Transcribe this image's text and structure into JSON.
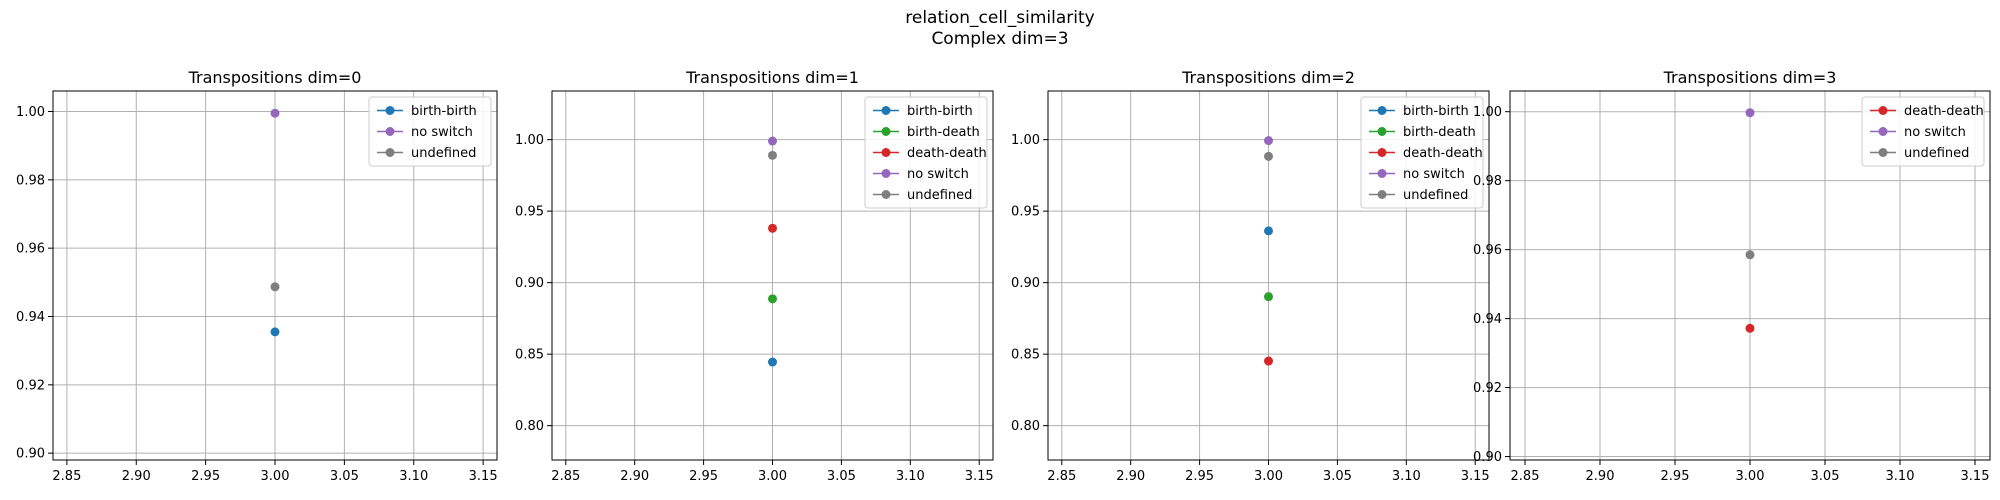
{
  "suptitle": [
    "relation_cell_similarity",
    "Complex dim=3"
  ],
  "colors": {
    "birth-birth": "#1f77b4",
    "birth-death": "#2ca02c",
    "death-death": "#d62728",
    "no switch": "#9467bd",
    "undefined": "#7f7f7f"
  },
  "chart_data": [
    {
      "type": "scatter",
      "title": "Transpositions dim=0",
      "xlim": [
        2.84,
        3.16
      ],
      "ylim": [
        0.898,
        1.006
      ],
      "xticks": [
        2.85,
        2.9,
        2.95,
        3.0,
        3.05,
        3.1,
        3.15
      ],
      "yticks": [
        0.9,
        0.92,
        0.94,
        0.96,
        0.98,
        1.0
      ],
      "grid": true,
      "legend_position": "top-right",
      "series": [
        {
          "name": "birth-birth",
          "x": [
            3.0
          ],
          "y": [
            0.9355
          ]
        },
        {
          "name": "no switch",
          "x": [
            3.0
          ],
          "y": [
            0.9995
          ]
        },
        {
          "name": "undefined",
          "x": [
            3.0
          ],
          "y": [
            0.9487
          ]
        }
      ]
    },
    {
      "type": "scatter",
      "title": "Transpositions dim=1",
      "xlim": [
        2.84,
        3.16
      ],
      "ylim": [
        0.776,
        1.034
      ],
      "xticks": [
        2.85,
        2.9,
        2.95,
        3.0,
        3.05,
        3.1,
        3.15
      ],
      "yticks": [
        0.8,
        0.85,
        0.9,
        0.95,
        1.0
      ],
      "grid": true,
      "legend_position": "top-right",
      "series": [
        {
          "name": "birth-birth",
          "x": [
            3.0
          ],
          "y": [
            0.8445
          ]
        },
        {
          "name": "birth-death",
          "x": [
            3.0
          ],
          "y": [
            0.8887
          ]
        },
        {
          "name": "death-death",
          "x": [
            3.0
          ],
          "y": [
            0.938
          ]
        },
        {
          "name": "no switch",
          "x": [
            3.0
          ],
          "y": [
            0.999
          ]
        },
        {
          "name": "undefined",
          "x": [
            3.0
          ],
          "y": [
            0.989
          ]
        }
      ]
    },
    {
      "type": "scatter",
      "title": "Transpositions dim=2",
      "xlim": [
        2.84,
        3.16
      ],
      "ylim": [
        0.776,
        1.034
      ],
      "xticks": [
        2.85,
        2.9,
        2.95,
        3.0,
        3.05,
        3.1,
        3.15
      ],
      "yticks": [
        0.8,
        0.85,
        0.9,
        0.95,
        1.0
      ],
      "grid": true,
      "legend_position": "top-right",
      "series": [
        {
          "name": "birth-birth",
          "x": [
            3.0
          ],
          "y": [
            0.9362
          ]
        },
        {
          "name": "birth-death",
          "x": [
            3.0
          ],
          "y": [
            0.8902
          ]
        },
        {
          "name": "death-death",
          "x": [
            3.0
          ],
          "y": [
            0.8452
          ]
        },
        {
          "name": "no switch",
          "x": [
            3.0
          ],
          "y": [
            0.9993
          ]
        },
        {
          "name": "undefined",
          "x": [
            3.0
          ],
          "y": [
            0.9883
          ]
        }
      ]
    },
    {
      "type": "scatter",
      "title": "Transpositions dim=3",
      "xlim": [
        2.84,
        3.16
      ],
      "ylim": [
        0.899,
        1.006
      ],
      "xticks": [
        2.85,
        2.9,
        2.95,
        3.0,
        3.05,
        3.1,
        3.15
      ],
      "yticks": [
        0.9,
        0.92,
        0.94,
        0.96,
        0.98,
        1.0
      ],
      "grid": true,
      "legend_position": "top-right",
      "series": [
        {
          "name": "death-death",
          "x": [
            3.0
          ],
          "y": [
            0.9372
          ]
        },
        {
          "name": "no switch",
          "x": [
            3.0
          ],
          "y": [
            0.9997
          ]
        },
        {
          "name": "undefined",
          "x": [
            3.0
          ],
          "y": [
            0.9585
          ]
        }
      ]
    }
  ]
}
